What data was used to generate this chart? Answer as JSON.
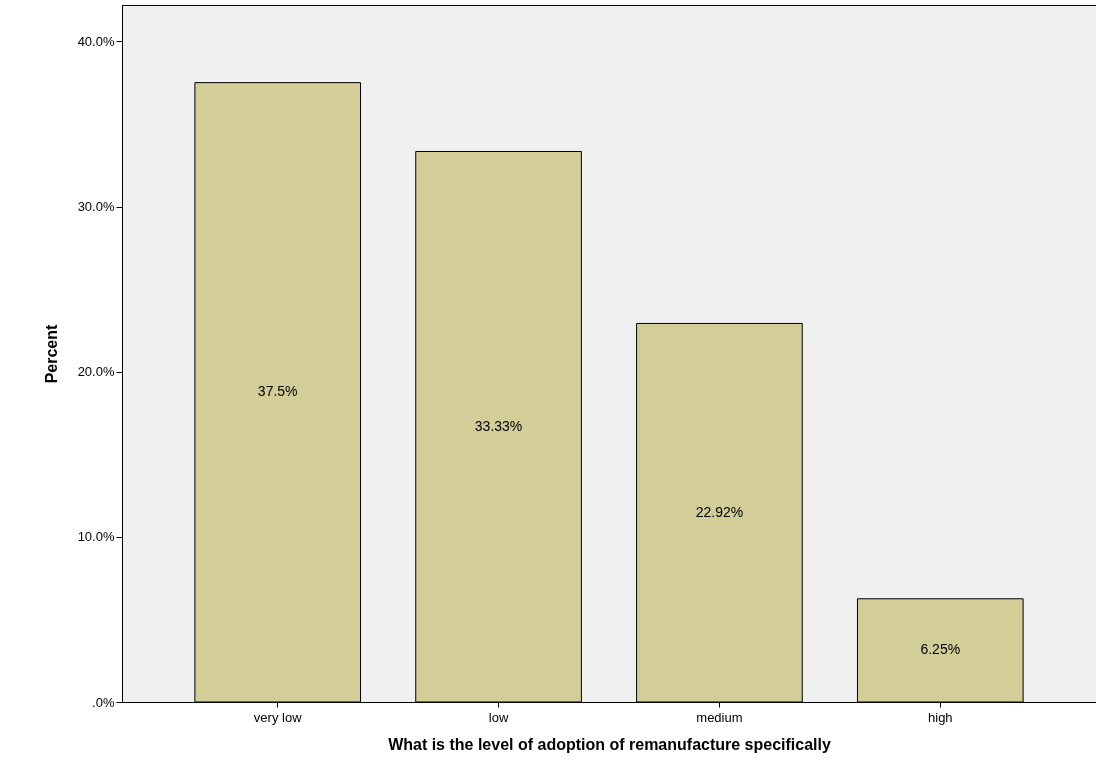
{
  "chart_data": {
    "type": "bar",
    "xlabel": "What is the level of adoption of remanufacture specifically",
    "ylabel": "Percent",
    "categories": [
      "very low",
      "low",
      "medium",
      "high"
    ],
    "values": [
      37.5,
      33.33,
      22.92,
      6.25
    ],
    "value_labels": [
      "37.5%",
      "33.33%",
      "22.92%",
      "6.25%"
    ],
    "color": "#d3cd98",
    "ylim": [
      0,
      42.2
    ],
    "yticks": [
      {
        "value": 0,
        "label": ".0%"
      },
      {
        "value": 10,
        "label": "10.0%"
      },
      {
        "value": 20,
        "label": "20.0%"
      },
      {
        "value": 30,
        "label": "30.0%"
      },
      {
        "value": 40,
        "label": "40.0%"
      }
    ],
    "grid": false
  }
}
